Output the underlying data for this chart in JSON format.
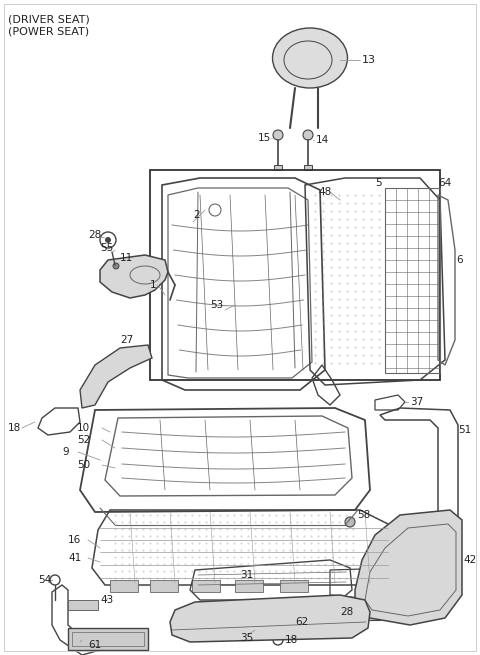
{
  "title_line1": "(DRIVER SEAT)",
  "title_line2": "(POWER SEAT)",
  "bg_color": "#ffffff",
  "lc": "#666666",
  "lc2": "#444444",
  "lc3": "#999999",
  "figsize": [
    4.8,
    6.55
  ],
  "dpi": 100,
  "label_color": "#222222",
  "label_fs": 7.5,
  "title_fs": 8.0,
  "box_color": "#444444"
}
